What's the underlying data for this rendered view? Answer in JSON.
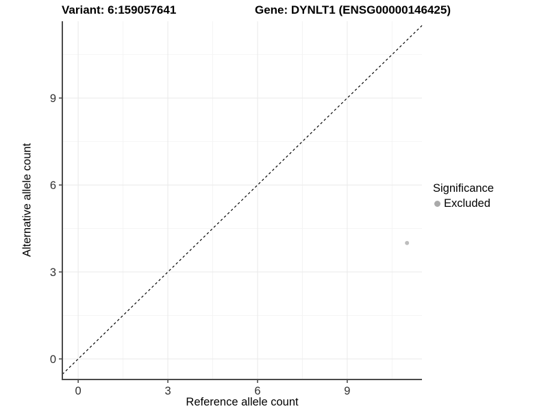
{
  "titles": {
    "variant": "Variant: 6:159057641",
    "gene": "Gene: DYNLT1 (ENSG00000146425)"
  },
  "chart_data": {
    "type": "scatter",
    "title_left": "Variant: 6:159057641",
    "title_right": "Gene: DYNLT1 (ENSG00000146425)",
    "xlabel": "Reference allele count",
    "ylabel": "Alternative allele count",
    "x_ticks": [
      0,
      3,
      6,
      9
    ],
    "y_ticks": [
      0,
      3,
      6,
      9
    ],
    "x_minor_gridlines": [
      1.5,
      4.5,
      7.5,
      10.5
    ],
    "y_minor_gridlines": [
      1.5,
      4.5,
      7.5,
      10.5
    ],
    "xlim": [
      -0.53,
      11.5
    ],
    "ylim": [
      -0.71,
      11.65
    ],
    "grid": true,
    "points": [
      {
        "x": 11,
        "y": 4,
        "significance": "Excluded",
        "color": "#bdbdbd"
      }
    ],
    "reference_line": {
      "type": "identity",
      "slope": 1,
      "intercept": 0,
      "style": "dashed",
      "color": "#000000"
    },
    "legend": {
      "title": "Significance",
      "position": "right",
      "entries": [
        {
          "label": "Excluded",
          "color": "#aaaaaa"
        }
      ]
    },
    "colors": {
      "axis_line": "#4a4a4a",
      "tick_text": "#303030",
      "grid_major": "#e9e9e9",
      "grid_minor": "#f4f4f4",
      "background": "#ffffff"
    }
  }
}
